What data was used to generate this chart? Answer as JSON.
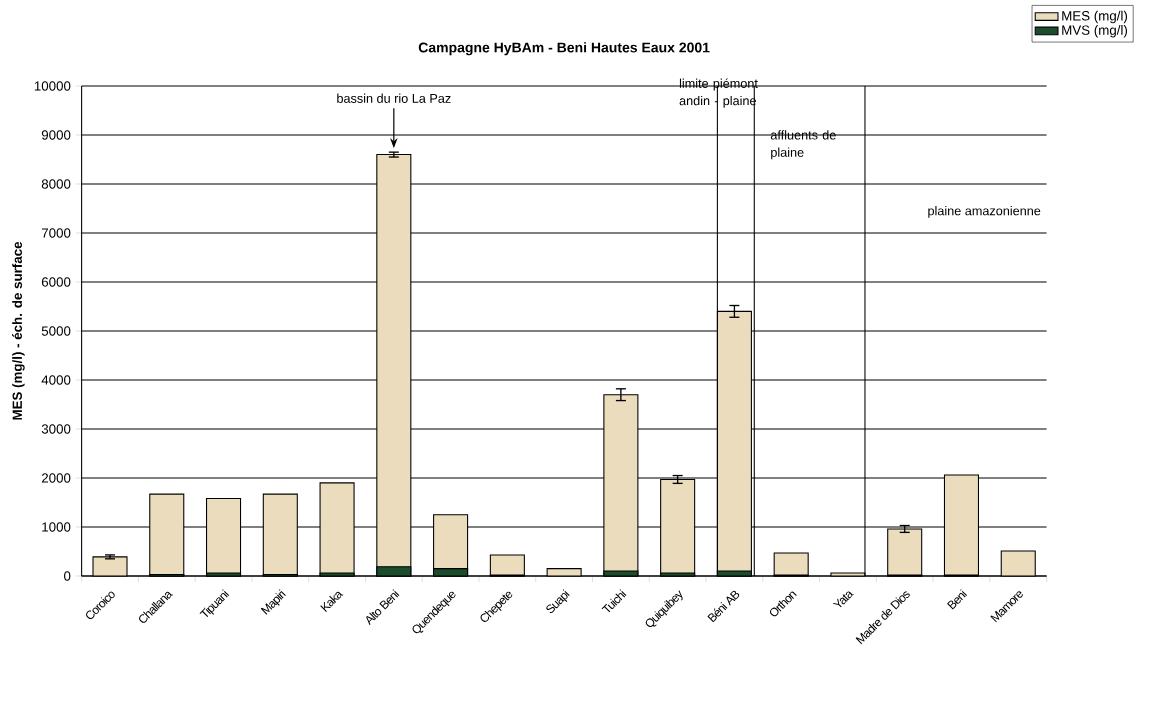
{
  "chart_data": {
    "type": "bar",
    "title": "Campagne HyBAm - Beni Hautes Eaux 2001",
    "ylabel": "MES (mg/l) - éch. de surface",
    "categories": [
      "Coroico",
      "Challana",
      "Tipuani",
      "Mapiri",
      "Kaka",
      "Alto Beni",
      "Quendeque",
      "Chepete",
      "Suapi",
      "Tuichi",
      "Quiquibey",
      "Béni AB",
      "Orthon",
      "Yata",
      "Madre de Dios",
      "Beni",
      "Mamore"
    ],
    "series": [
      {
        "name": "MES (mg/l)",
        "color": "#eadcbc",
        "values": [
          390,
          1670,
          1580,
          1670,
          1900,
          8600,
          1250,
          430,
          150,
          3700,
          1970,
          5400,
          470,
          60,
          960,
          2060,
          510
        ],
        "errors": [
          40,
          null,
          null,
          null,
          null,
          50,
          null,
          null,
          null,
          120,
          80,
          120,
          null,
          null,
          70,
          null,
          null
        ]
      },
      {
        "name": "MVS (mg/l)",
        "color": "#1b4d2c",
        "values": [
          null,
          30,
          60,
          30,
          60,
          190,
          150,
          20,
          null,
          100,
          60,
          100,
          20,
          null,
          20,
          20,
          null
        ]
      }
    ],
    "ylim": [
      0,
      10000
    ],
    "yticks": [
      0,
      1000,
      2000,
      3000,
      4000,
      5000,
      6000,
      7000,
      8000,
      9000,
      10000
    ],
    "grid": "y",
    "legend": "top right",
    "annotations": [
      "bassin du rio La Paz",
      "limite piémont andin - plaine",
      "affluents de plaine",
      "plaine amazonienne"
    ]
  }
}
